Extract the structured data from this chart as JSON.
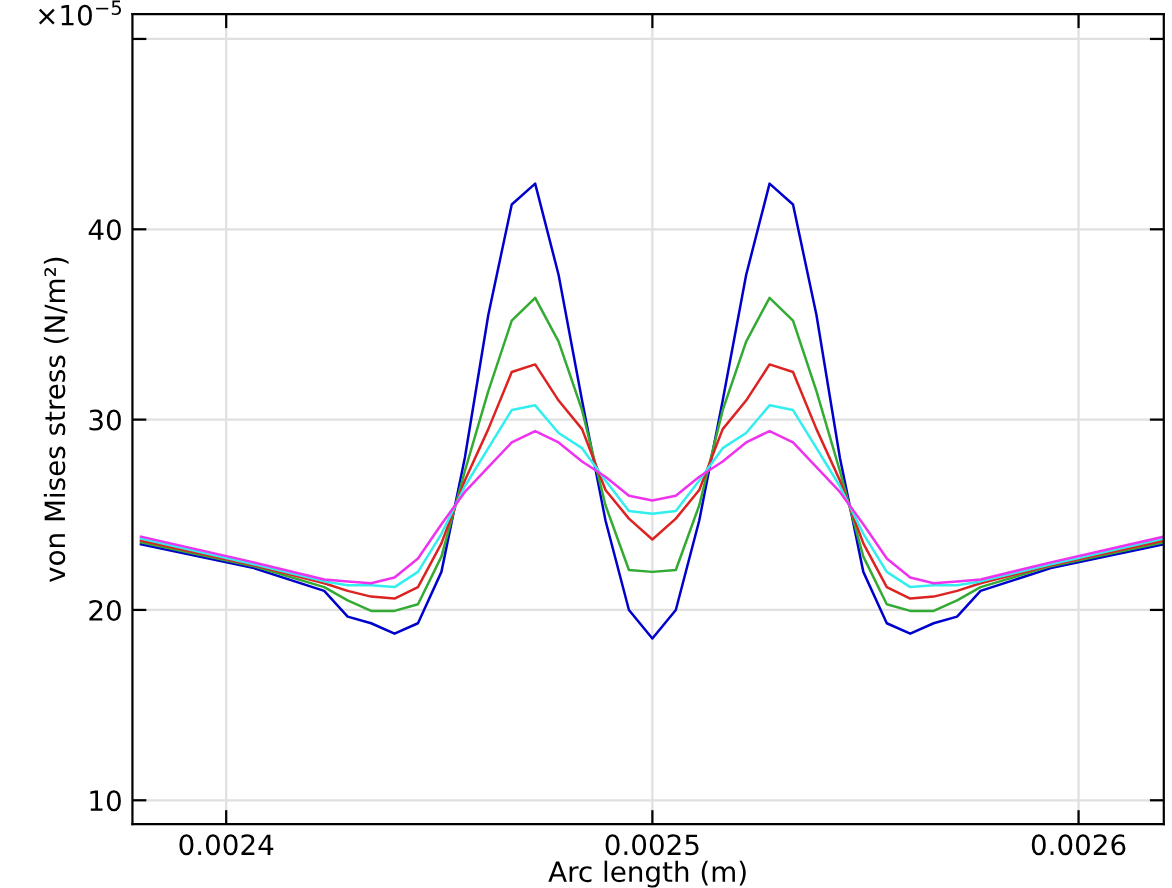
{
  "chart_data": {
    "type": "line",
    "xlabel": "Arc length (m)",
    "ylabel": "von Mises stress (N/m²)",
    "annotations": [
      "×10$^{−5}$"
    ],
    "x": [
      0.00238,
      0.0024065,
      0.002423,
      0.0024285,
      0.002434,
      0.0024395,
      0.002445,
      0.0024505,
      0.002456,
      0.0024615,
      0.002467,
      0.0024725,
      0.002478,
      0.0024835,
      0.002489,
      0.0024945,
      0.0025,
      0.0025055,
      0.002511,
      0.0025165,
      0.002522,
      0.0025275,
      0.002533,
      0.0025385,
      0.002544,
      0.0025495,
      0.002555,
      0.0025605,
      0.002566,
      0.0025715,
      0.002577,
      0.0025935,
      0.00262
    ],
    "series": [
      {
        "color": "#0000cc",
        "values": [
          23.45,
          22.2,
          21.0,
          19.65,
          19.3,
          18.75,
          19.3,
          22.0,
          28.0,
          35.5,
          41.3,
          42.4,
          37.6,
          31.0,
          24.7,
          20.0,
          18.5,
          20.0,
          24.7,
          31.0,
          37.6,
          42.4,
          41.3,
          35.5,
          28.0,
          22.0,
          19.3,
          18.75,
          19.3,
          19.65,
          21.0,
          22.2,
          23.45
        ]
      },
      {
        "color": "#33aa33",
        "values": [
          23.55,
          22.3,
          21.2,
          20.5,
          19.95,
          19.95,
          20.3,
          22.8,
          27.3,
          31.5,
          35.2,
          36.4,
          34.1,
          30.5,
          25.5,
          22.1,
          22.0,
          22.1,
          25.5,
          30.5,
          34.1,
          36.4,
          35.2,
          31.5,
          27.3,
          22.8,
          20.3,
          19.95,
          19.95,
          20.5,
          21.2,
          22.3,
          23.55
        ]
      },
      {
        "color": "#dd2222",
        "values": [
          23.65,
          22.35,
          21.4,
          21.0,
          20.7,
          20.6,
          21.2,
          23.5,
          26.8,
          29.5,
          32.5,
          32.9,
          31.0,
          29.5,
          26.3,
          24.8,
          23.7,
          24.8,
          26.3,
          29.5,
          31.0,
          32.9,
          32.5,
          29.5,
          26.8,
          23.5,
          21.2,
          20.6,
          20.7,
          21.0,
          21.4,
          22.35,
          23.65
        ]
      },
      {
        "color": "#33eeee",
        "values": [
          23.75,
          22.4,
          21.5,
          21.3,
          21.3,
          21.2,
          22.0,
          24.0,
          26.5,
          28.5,
          30.5,
          30.75,
          29.3,
          28.5,
          26.8,
          25.2,
          25.05,
          25.2,
          26.8,
          28.5,
          29.3,
          30.75,
          30.5,
          28.5,
          26.5,
          24.0,
          22.0,
          21.2,
          21.3,
          21.3,
          21.5,
          22.4,
          23.75
        ]
      },
      {
        "color": "#ee33ee",
        "values": [
          23.85,
          22.5,
          21.6,
          21.5,
          21.4,
          21.7,
          22.7,
          24.5,
          26.2,
          27.5,
          28.8,
          29.4,
          28.8,
          27.8,
          27.0,
          26.0,
          25.75,
          26.0,
          27.0,
          27.8,
          28.8,
          29.4,
          28.8,
          27.5,
          26.2,
          24.5,
          22.7,
          21.7,
          21.4,
          21.5,
          21.6,
          22.5,
          23.85
        ]
      }
    ],
    "xlim": [
      0.002378,
      0.00262
    ],
    "xticks": [
      0.0024,
      0.0025,
      0.0026
    ],
    "ylim": [
      8.75,
      51.3
    ],
    "yticks": [
      10,
      20,
      30,
      40,
      {
        "value": 50,
        "label": null
      }
    ],
    "grid": true,
    "marker": "none",
    "line_style": "solid"
  }
}
